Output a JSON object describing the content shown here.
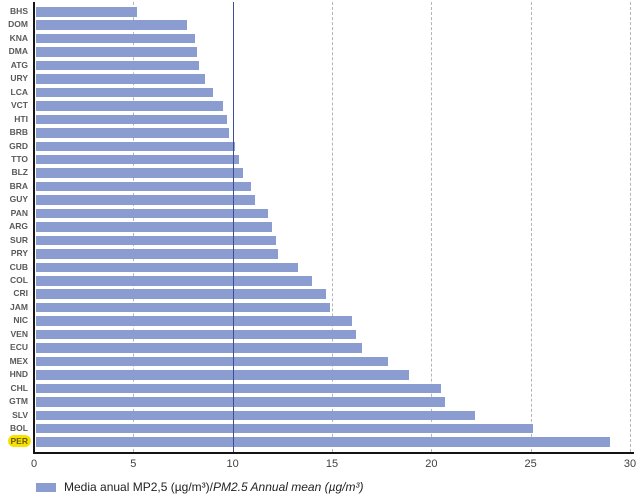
{
  "chart_data": {
    "type": "bar",
    "orientation": "horizontal",
    "title": "",
    "xlabel": "",
    "ylabel": "",
    "xlim": [
      0,
      30
    ],
    "x_ticks": [
      0,
      5,
      10,
      15,
      20,
      25,
      30
    ],
    "categories": [
      "BHS",
      "DOM",
      "KNA",
      "DMA",
      "ATG",
      "URY",
      "LCA",
      "VCT",
      "HTI",
      "BRB",
      "GRD",
      "TTO",
      "BLZ",
      "BRA",
      "GUY",
      "PAN",
      "ARG",
      "SUR",
      "PRY",
      "CUB",
      "COL",
      "CRI",
      "JAM",
      "NIC",
      "VEN",
      "ECU",
      "MEX",
      "HND",
      "CHL",
      "GTM",
      "SLV",
      "BOL",
      "PER"
    ],
    "values": [
      5.2,
      7.7,
      8.1,
      8.2,
      8.3,
      8.6,
      9.0,
      9.5,
      9.7,
      9.8,
      10.1,
      10.3,
      10.5,
      10.9,
      11.1,
      11.8,
      12.0,
      12.2,
      12.3,
      13.3,
      14.0,
      14.7,
      14.9,
      16.0,
      16.2,
      16.5,
      17.8,
      18.9,
      20.5,
      20.7,
      22.2,
      25.1,
      29.0
    ],
    "highlight_category": "PER",
    "gridlines": {
      "values": [
        5,
        15,
        20,
        25,
        30
      ],
      "style": "dashed",
      "color": "#b5b5b5"
    },
    "reference_line": {
      "value": 10,
      "style": "solid",
      "color": "#3e4d94"
    },
    "bar_color": "#8b9cd1",
    "highlight_bg_color": "#f8e100",
    "legend": {
      "label_es": "Media anual MP2,5 (µg/m³)/",
      "label_en_italic": "PM2.5 Annual mean (µg/m³)"
    }
  }
}
